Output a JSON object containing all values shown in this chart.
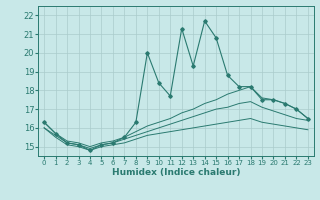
{
  "title": "",
  "xlabel": "Humidex (Indice chaleur)",
  "xlim": [
    -0.5,
    23.5
  ],
  "ylim": [
    14.5,
    22.5
  ],
  "xticks": [
    0,
    1,
    2,
    3,
    4,
    5,
    6,
    7,
    8,
    9,
    10,
    11,
    12,
    13,
    14,
    15,
    16,
    17,
    18,
    19,
    20,
    21,
    22,
    23
  ],
  "yticks": [
    15,
    16,
    17,
    18,
    19,
    20,
    21,
    22
  ],
  "bg_color": "#c8e8e8",
  "line_color": "#2a7a70",
  "grid_color": "#aacccc",
  "s1_y": [
    16.3,
    15.7,
    15.2,
    15.1,
    14.8,
    15.1,
    15.2,
    15.5,
    16.3,
    20.0,
    18.4,
    17.7,
    21.3,
    19.3,
    21.7,
    20.8,
    18.8,
    18.2,
    18.2,
    17.5,
    17.5,
    17.3,
    17.0,
    16.5
  ],
  "s2_y": [
    16.3,
    15.7,
    15.3,
    15.2,
    15.0,
    15.2,
    15.3,
    15.5,
    15.8,
    16.1,
    16.3,
    16.5,
    16.8,
    17.0,
    17.3,
    17.5,
    17.8,
    18.0,
    18.2,
    17.6,
    17.5,
    17.3,
    17.0,
    16.5
  ],
  "s3_y": [
    16.0,
    15.6,
    15.2,
    15.1,
    14.9,
    15.1,
    15.2,
    15.4,
    15.6,
    15.8,
    16.0,
    16.2,
    16.4,
    16.6,
    16.8,
    17.0,
    17.1,
    17.3,
    17.4,
    17.1,
    16.9,
    16.7,
    16.5,
    16.4
  ],
  "s4_y": [
    16.0,
    15.5,
    15.1,
    15.0,
    14.8,
    15.0,
    15.1,
    15.2,
    15.4,
    15.6,
    15.7,
    15.8,
    15.9,
    16.0,
    16.1,
    16.2,
    16.3,
    16.4,
    16.5,
    16.3,
    16.2,
    16.1,
    16.0,
    15.9
  ]
}
